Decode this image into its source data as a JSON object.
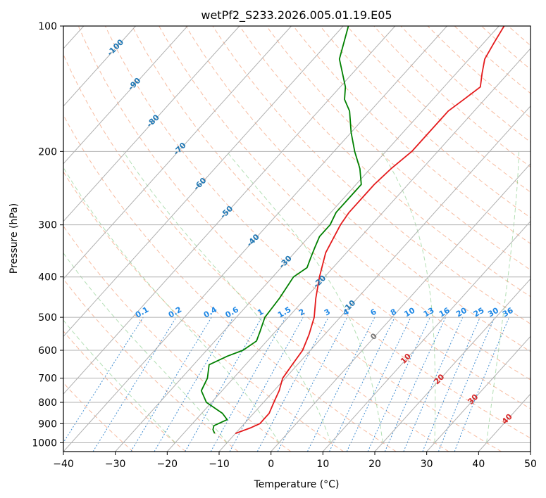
{
  "chart_data": {
    "type": "line",
    "title": "wetPf2_S233.2026.005.01.19.E05",
    "xlabel": "Temperature (°C)",
    "ylabel": "Pressure (hPa)",
    "xlim": [
      -40,
      50
    ],
    "ylim": [
      1050,
      100
    ],
    "x_ticks": [
      -40,
      -30,
      -20,
      -10,
      0,
      10,
      20,
      30,
      40,
      50
    ],
    "x_tick_labels": [
      "−40",
      "−30",
      "−20",
      "−10",
      "0",
      "10",
      "20",
      "30",
      "40",
      "50"
    ],
    "y_ticks": [
      100,
      200,
      300,
      400,
      500,
      600,
      700,
      800,
      900,
      1000
    ],
    "y_tick_labels": [
      "100",
      "200",
      "300",
      "400",
      "500",
      "600",
      "700",
      "800",
      "900",
      "1000"
    ],
    "isotherm_labels": [
      "-100",
      "-90",
      "-80",
      "-70",
      "-60",
      "-50",
      "-40",
      "-30",
      "-20",
      "-10",
      "0",
      "10",
      "20",
      "30",
      "40"
    ],
    "isotherm_values": [
      -100,
      -90,
      -80,
      -70,
      -60,
      -50,
      -40,
      -30,
      -20,
      -10,
      0,
      10,
      20,
      30,
      40
    ],
    "mixing_ratio_labels": [
      "0.1",
      "0.2",
      "0.4",
      "0.6",
      "1",
      "1.5",
      "2",
      "3",
      "4",
      "6",
      "8",
      "10",
      "13",
      "16",
      "20",
      "25",
      "30",
      "36"
    ],
    "mixing_ratio_values": [
      0.1,
      0.2,
      0.4,
      0.6,
      1,
      1.5,
      2,
      3,
      4,
      6,
      8,
      10,
      13,
      16,
      20,
      25,
      30,
      36
    ],
    "series": [
      {
        "name": "Temperature",
        "color": "#e41a1c",
        "pressure": [
          950,
          920,
          900,
          850,
          800,
          750,
          700,
          650,
          600,
          550,
          500,
          450,
          400,
          350,
          300,
          280,
          260,
          240,
          220,
          200,
          180,
          160,
          150,
          140,
          130,
          120,
          110,
          100
        ],
        "temperature": [
          -10,
          -8,
          -7,
          -7,
          -8,
          -9,
          -10.5,
          -11,
          -11.5,
          -13,
          -15,
          -18,
          -21,
          -24,
          -26,
          -26.5,
          -26.5,
          -26.5,
          -26,
          -25,
          -25,
          -25,
          -24,
          -23,
          -25,
          -27,
          -28,
          -29
        ]
      },
      {
        "name": "Dewpoint",
        "color": "#008000",
        "pressure": [
          950,
          930,
          910,
          880,
          850,
          800,
          750,
          700,
          650,
          620,
          600,
          570,
          540,
          500,
          450,
          400,
          380,
          360,
          340,
          320,
          300,
          280,
          260,
          250,
          240,
          220,
          200,
          180,
          160,
          150,
          140,
          120,
          100
        ],
        "temperature": [
          -14,
          -15,
          -15.5,
          -14,
          -16,
          -21,
          -24,
          -25,
          -27,
          -25,
          -23,
          -22,
          -23,
          -24.5,
          -25,
          -26,
          -25,
          -26,
          -27,
          -28,
          -28,
          -29,
          -29,
          -29,
          -29,
          -32,
          -36,
          -40,
          -44,
          -47,
          -49,
          -55,
          -59
        ]
      }
    ]
  }
}
